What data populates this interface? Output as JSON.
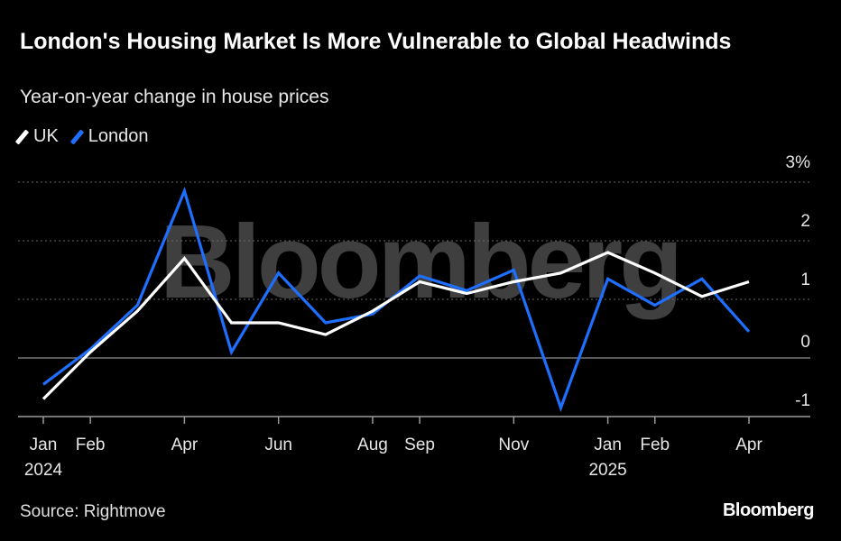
{
  "header": {
    "title": "London's Housing Market Is More Vulnerable to Global Headwinds",
    "subtitle": "Year-on-year change in house prices"
  },
  "legend": [
    {
      "label": "UK",
      "color": "#ffffff"
    },
    {
      "label": "London",
      "color": "#1f6fff"
    }
  ],
  "watermark": "Bloomberg",
  "footer": {
    "source": "Source: Rightmove",
    "brand": "Bloomberg"
  },
  "chart_data": {
    "type": "line",
    "title": "London's Housing Market Is More Vulnerable to Global Headwinds",
    "subtitle": "Year-on-year change in house prices",
    "xlabel": "",
    "ylabel": "",
    "x": [
      "Jan 2024",
      "Feb 2024",
      "Mar 2024",
      "Apr 2024",
      "May 2024",
      "Jun 2024",
      "Jul 2024",
      "Aug 2024",
      "Sep 2024",
      "Oct 2024",
      "Nov 2024",
      "Dec 2024",
      "Jan 2025",
      "Feb 2025",
      "Mar 2025",
      "Apr 2025"
    ],
    "x_tick_labels": [
      {
        "index": 0,
        "label": "Jan",
        "year": "2024"
      },
      {
        "index": 1,
        "label": "Feb",
        "year": ""
      },
      {
        "index": 3,
        "label": "Apr",
        "year": ""
      },
      {
        "index": 5,
        "label": "Jun",
        "year": ""
      },
      {
        "index": 7,
        "label": "Aug",
        "year": ""
      },
      {
        "index": 8,
        "label": "Sep",
        "year": ""
      },
      {
        "index": 10,
        "label": "Nov",
        "year": ""
      },
      {
        "index": 12,
        "label": "Jan",
        "year": "2025"
      },
      {
        "index": 13,
        "label": "Feb",
        "year": ""
      },
      {
        "index": 15,
        "label": "Apr",
        "year": ""
      }
    ],
    "y_ticks": [
      {
        "value": 3,
        "label": "3%"
      },
      {
        "value": 2,
        "label": "2"
      },
      {
        "value": 1,
        "label": "1"
      },
      {
        "value": 0,
        "label": "0"
      },
      {
        "value": -1,
        "label": "-1"
      }
    ],
    "ylim": [
      -1,
      3
    ],
    "grid": true,
    "series": [
      {
        "name": "UK",
        "color": "#ffffff",
        "values": [
          -0.7,
          0.1,
          0.8,
          1.7,
          0.6,
          0.6,
          0.4,
          0.8,
          1.3,
          1.1,
          1.3,
          1.45,
          1.8,
          1.45,
          1.05,
          1.3
        ]
      },
      {
        "name": "London",
        "color": "#1f6fff",
        "values": [
          -0.45,
          0.15,
          0.9,
          2.85,
          0.1,
          1.45,
          0.6,
          0.75,
          1.4,
          1.15,
          1.5,
          -0.85,
          1.35,
          0.9,
          1.35,
          0.45
        ]
      }
    ]
  }
}
